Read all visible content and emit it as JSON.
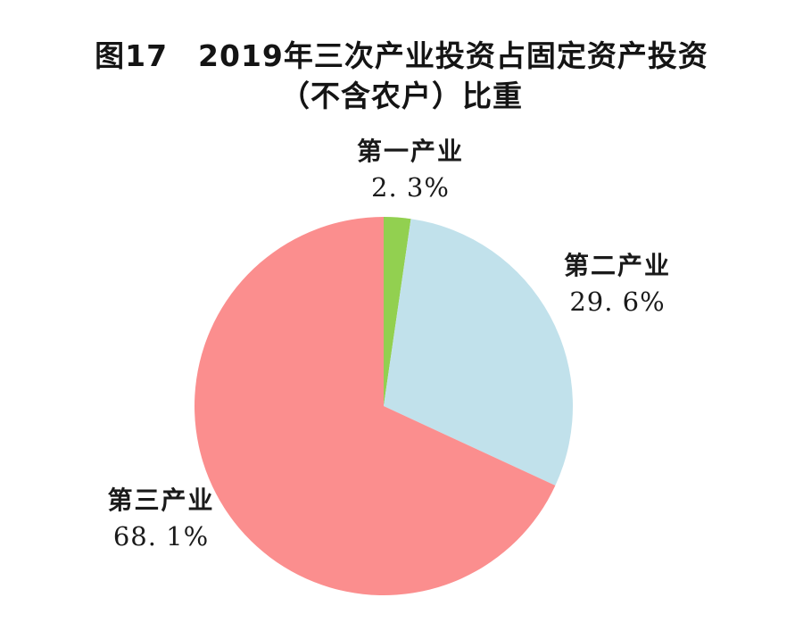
{
  "page": {
    "background_color": "#FFFFFF",
    "text_color": "#141414"
  },
  "title": {
    "line1": "图17　2019年三次产业投资占固定资产投资",
    "line2": "（不含农户）比重"
  },
  "chart_data": {
    "type": "pie",
    "figure_number": "图17",
    "title": "2019年三次产业投资占固定资产投资（不含农户）比重",
    "unit": "%",
    "start_angle_deg": 0,
    "direction": "clockwise",
    "legend": "none",
    "labels_position": "outside",
    "slices": [
      {
        "label": "第一产业",
        "value": 2.3,
        "display": "2. 3%",
        "color": "#92D050"
      },
      {
        "label": "第二产业",
        "value": 29.6,
        "display": "29. 6%",
        "color": "#C1E1EB"
      },
      {
        "label": "第三产业",
        "value": 68.1,
        "display": "68. 1%",
        "color": "#FB8E8E"
      }
    ]
  }
}
